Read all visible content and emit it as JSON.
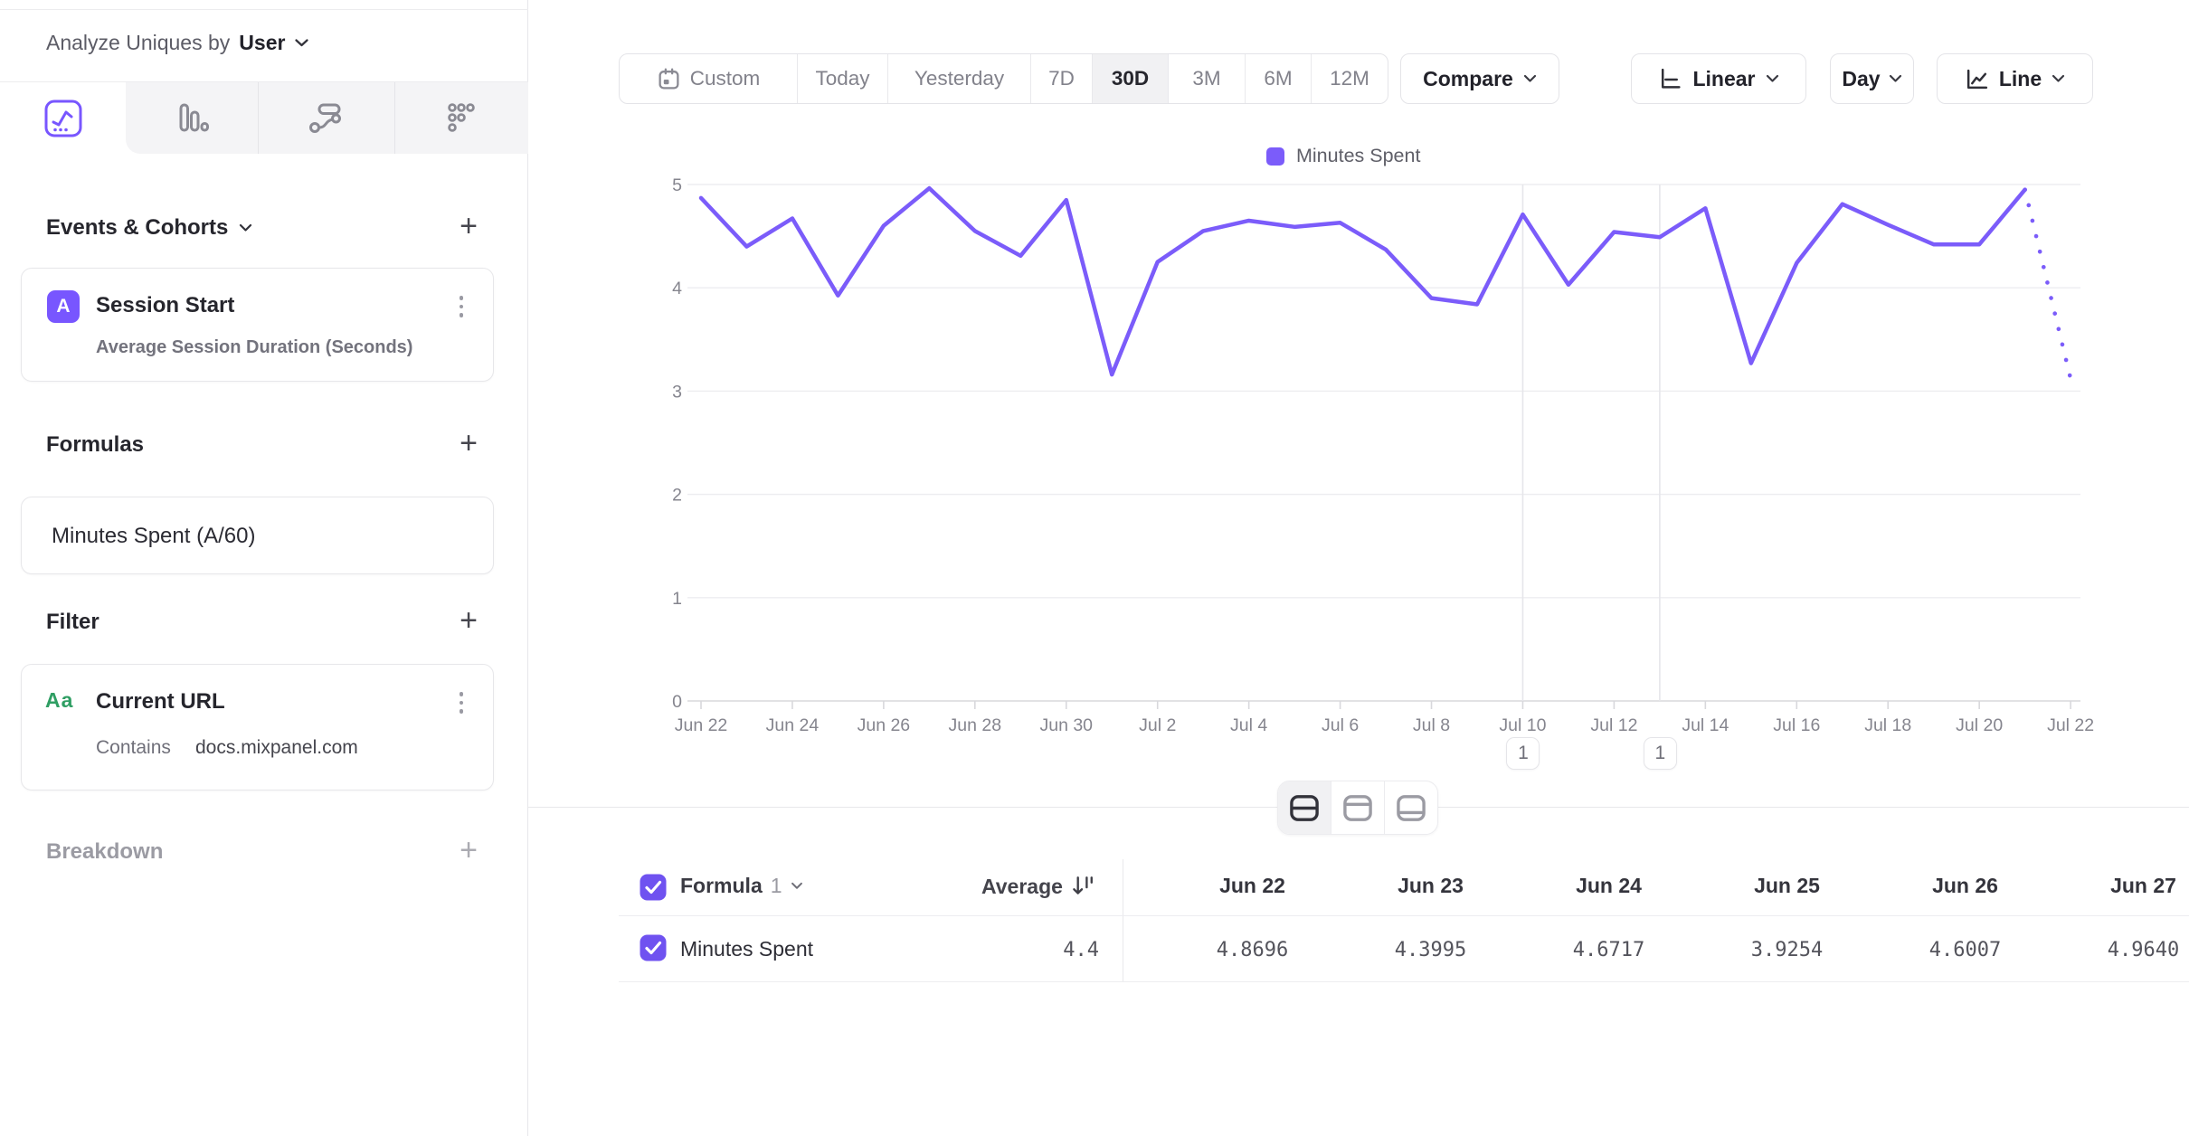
{
  "ui": {
    "plus": "+"
  },
  "colors": {
    "accent": "#7856ff",
    "line": "#7b5cfa",
    "green": "#2f9e63",
    "grid": "#ededf0",
    "axis_text": "#85858e"
  },
  "sidebar": {
    "analyze_label": "Analyze Uniques by",
    "analyze_value": "User",
    "tabs": [
      {
        "icon": "line-chart-icon",
        "selected": true
      },
      {
        "icon": "bar-chart-icon",
        "selected": false
      },
      {
        "icon": "flows-icon",
        "selected": false
      },
      {
        "icon": "retention-grid-icon",
        "selected": false
      }
    ],
    "events_title": "Events & Cohorts",
    "event_card": {
      "badge": "A",
      "title": "Session Start",
      "subtitle": "Average Session Duration (Seconds)"
    },
    "formulas_title": "Formulas",
    "formula_card_title": "Minutes Spent (A/60)",
    "filter_title": "Filter",
    "filter_card": {
      "badge": "Aa",
      "title": "Current URL",
      "operator": "Contains",
      "value": "docs.mixpanel.com"
    },
    "breakdown_title": "Breakdown"
  },
  "toolbar": {
    "date_ranges": [
      "Custom",
      "Today",
      "Yesterday",
      "7D",
      "30D",
      "3M",
      "6M",
      "12M"
    ],
    "range_widths": [
      196,
      100,
      158,
      68,
      84,
      85,
      73,
      85
    ],
    "selected_range": "30D",
    "compare_label": "Compare",
    "scale_label": "Linear",
    "interval_label": "Day",
    "chart_type_label": "Line"
  },
  "legend": {
    "label": "Minutes Spent",
    "color": "#7b5cfa"
  },
  "chart_data": {
    "type": "line",
    "title": "",
    "xlabel": "",
    "ylabel": "",
    "ylim": [
      0,
      5
    ],
    "yticks": [
      0,
      1,
      2,
      3,
      4,
      5
    ],
    "grid": "horizontal",
    "legend_position": "top-center",
    "x": [
      "Jun 22",
      "Jun 23",
      "Jun 24",
      "Jun 25",
      "Jun 26",
      "Jun 27",
      "Jun 28",
      "Jun 29",
      "Jun 30",
      "Jul 1",
      "Jul 2",
      "Jul 3",
      "Jul 4",
      "Jul 5",
      "Jul 6",
      "Jul 7",
      "Jul 8",
      "Jul 9",
      "Jul 10",
      "Jul 11",
      "Jul 12",
      "Jul 13",
      "Jul 14",
      "Jul 15",
      "Jul 16",
      "Jul 17",
      "Jul 18",
      "Jul 19",
      "Jul 20",
      "Jul 21",
      "Jul 22"
    ],
    "x_tick_every": 2,
    "series": [
      {
        "name": "Minutes Spent",
        "values": [
          4.8696,
          4.3995,
          4.6717,
          3.9254,
          4.6007,
          4.964,
          4.55,
          4.31,
          4.85,
          3.16,
          4.25,
          4.55,
          4.65,
          4.59,
          4.63,
          4.37,
          3.9,
          3.84,
          4.71,
          4.03,
          4.54,
          4.49,
          4.77,
          3.27,
          4.24,
          4.81,
          4.61,
          4.42,
          4.42,
          4.95,
          3.12
        ],
        "incomplete_last_segment": true
      }
    ]
  },
  "annotations": [
    {
      "label": "1",
      "day_index": 18,
      "date": "Jul 10"
    },
    {
      "label": "1",
      "day_index": 21,
      "date": "Jul 13"
    }
  ],
  "view_toggle": {
    "options": [
      "split-view",
      "table-top-view",
      "table-bottom-view"
    ],
    "selected": "split-view"
  },
  "table": {
    "formula_label": "Formula",
    "formula_index": "1",
    "average_label": "Average",
    "columns": [
      "Jun 22",
      "Jun 23",
      "Jun 24",
      "Jun 25",
      "Jun 26",
      "Jun 27"
    ],
    "row_label": "Minutes Spent",
    "average_value": "4.4",
    "values": [
      "4.8696",
      "4.3995",
      "4.6717",
      "3.9254",
      "4.6007",
      "4.9640"
    ]
  }
}
